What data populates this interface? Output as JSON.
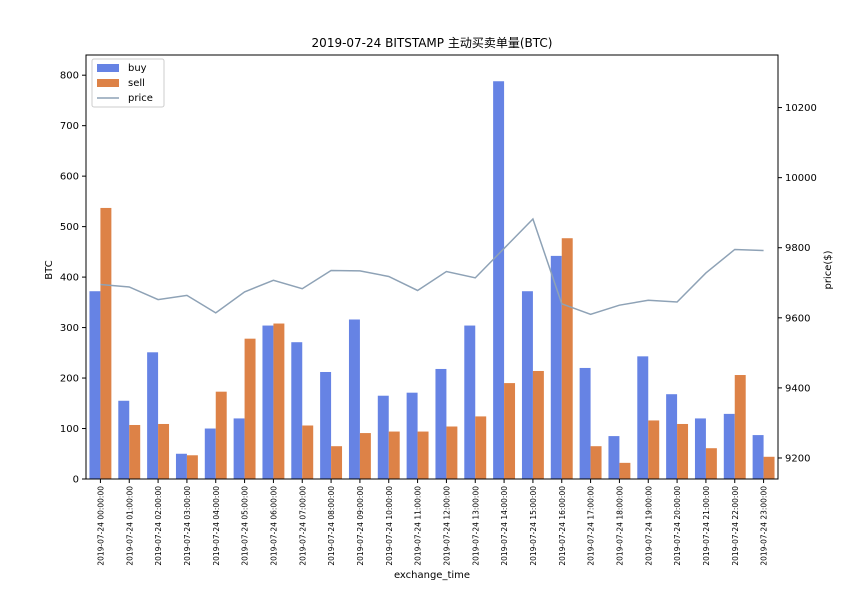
{
  "chart_data": {
    "type": "bar",
    "title": "2019-07-24 BITSTAMP 主动买卖单量(BTC)",
    "xlabel": "exchange_time",
    "ylabel": "BTC",
    "y2label": "price($)",
    "ylim": [
      0,
      840
    ],
    "y2lim": [
      9140,
      10350
    ],
    "yticks": [
      0,
      100,
      200,
      300,
      400,
      500,
      600,
      700,
      800
    ],
    "y2ticks": [
      9200,
      9400,
      9600,
      9800,
      10000,
      10200
    ],
    "legend_position": "upper-left",
    "grid": false,
    "categories": [
      "2019-07-24 00:00:00",
      "2019-07-24 01:00:00",
      "2019-07-24 02:00:00",
      "2019-07-24 03:00:00",
      "2019-07-24 04:00:00",
      "2019-07-24 05:00:00",
      "2019-07-24 06:00:00",
      "2019-07-24 07:00:00",
      "2019-07-24 08:00:00",
      "2019-07-24 09:00:00",
      "2019-07-24 10:00:00",
      "2019-07-24 11:00:00",
      "2019-07-24 12:00:00",
      "2019-07-24 13:00:00",
      "2019-07-24 14:00:00",
      "2019-07-24 15:00:00",
      "2019-07-24 16:00:00",
      "2019-07-24 17:00:00",
      "2019-07-24 18:00:00",
      "2019-07-24 19:00:00",
      "2019-07-24 20:00:00",
      "2019-07-24 21:00:00",
      "2019-07-24 22:00:00",
      "2019-07-24 23:00:00"
    ],
    "series": [
      {
        "name": "buy",
        "type": "bar",
        "axis": "left",
        "color": "#6683e4",
        "values": [
          372,
          155,
          251,
          50,
          100,
          120,
          304,
          271,
          212,
          316,
          165,
          171,
          218,
          304,
          788,
          372,
          442,
          220,
          85,
          243,
          168,
          120,
          129,
          87
        ]
      },
      {
        "name": "sell",
        "type": "bar",
        "axis": "left",
        "color": "#dd8247",
        "values": [
          537,
          107,
          109,
          47,
          173,
          278,
          308,
          106,
          65,
          91,
          94,
          94,
          104,
          124,
          190,
          214,
          477,
          65,
          32,
          116,
          109,
          61,
          206,
          44
        ]
      },
      {
        "name": "price",
        "type": "line",
        "axis": "right",
        "color": "#8ea2b6",
        "values": [
          9695,
          9688,
          9652,
          9664,
          9614,
          9674,
          9707,
          9683,
          9735,
          9734,
          9718,
          9678,
          9732,
          9714,
          9798,
          9882,
          9640,
          9610,
          9636,
          9650,
          9645,
          9728,
          9795,
          9792
        ]
      }
    ]
  }
}
